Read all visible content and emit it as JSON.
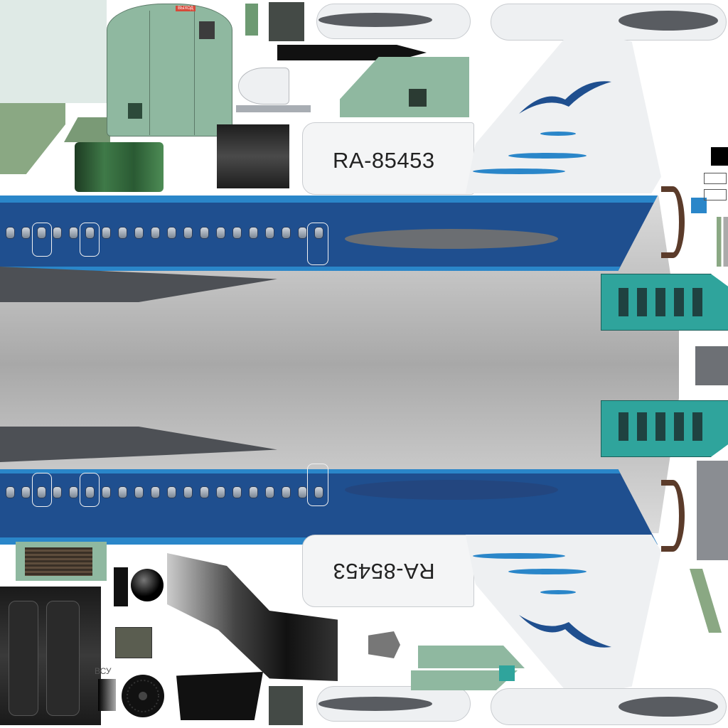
{
  "texture": {
    "registration_top": "RA-85453",
    "registration_bottom": "RA-85453",
    "apu_label": "ВСУ",
    "decal_label": "ВЫХОД"
  },
  "colors": {
    "fuselage_blue": "#1f4f8f",
    "stripe_light_blue": "#2a86c9",
    "fuselage_silver": "#c4c4c4",
    "panel_green": "#8fb8a0",
    "cockpit_teal": "#2fa49c",
    "wing_gray": "#595c61"
  },
  "icons": [
    "seagull-logo-icon",
    "engine-intake-icon",
    "wheel-hub-icon",
    "gear-strut-icon"
  ]
}
